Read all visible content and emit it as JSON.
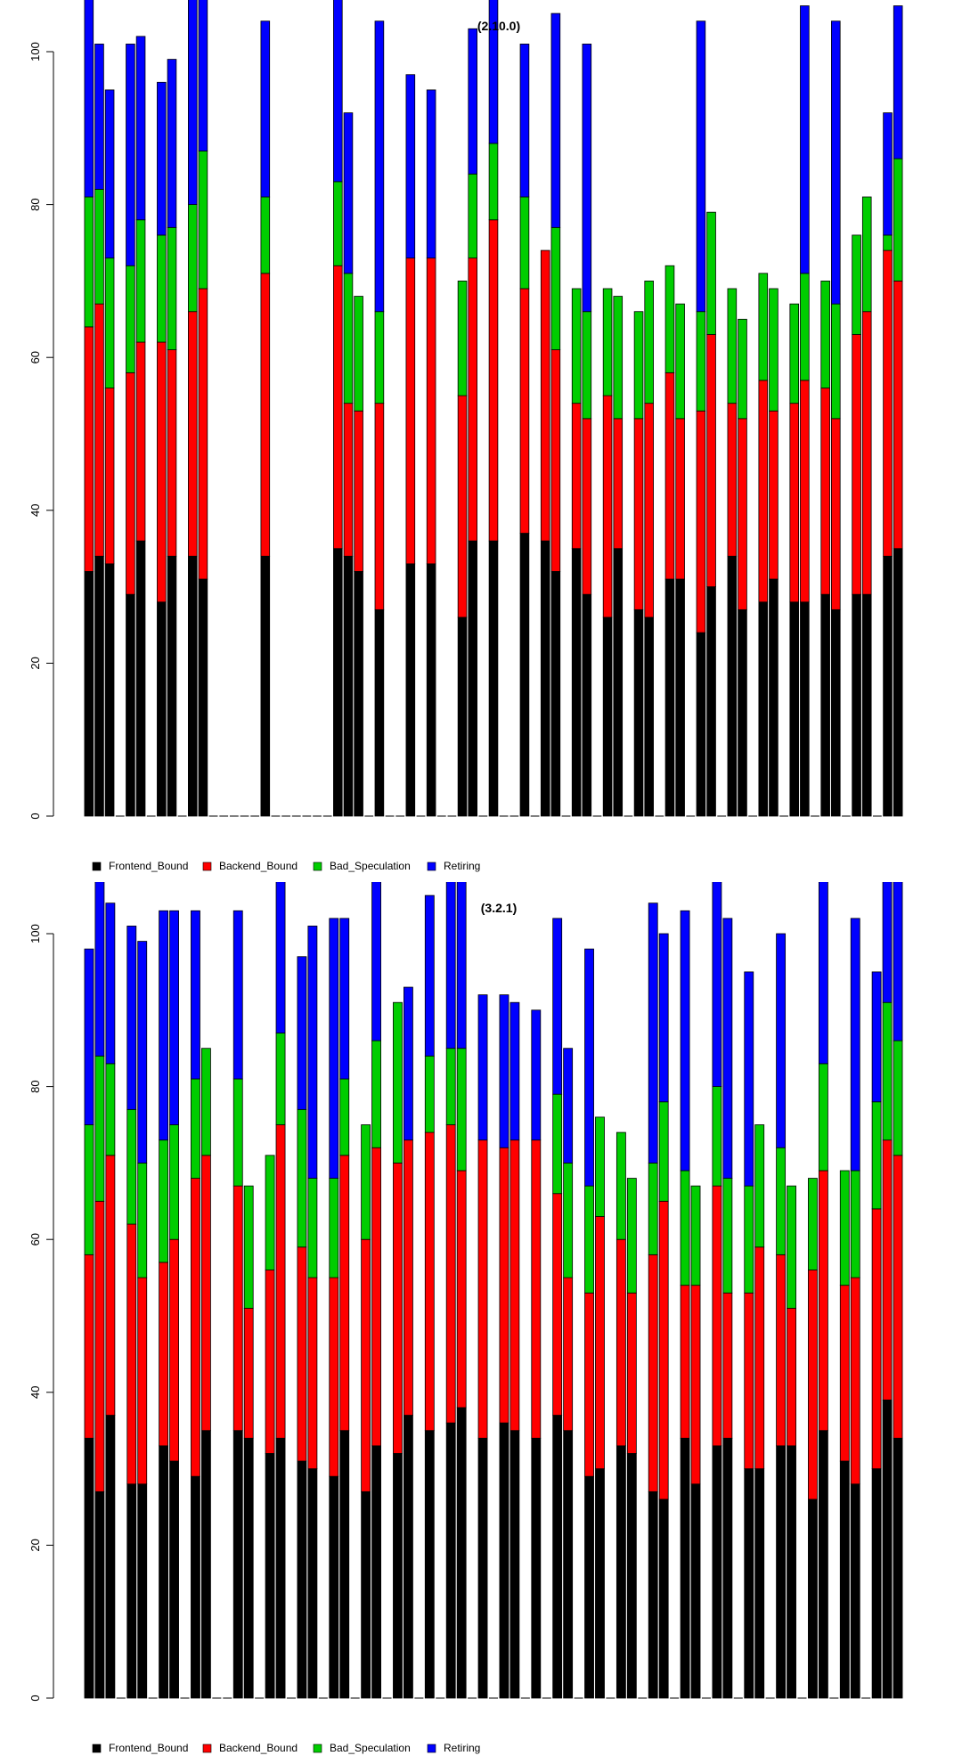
{
  "chart_data": [
    {
      "type": "bar",
      "stacked": true,
      "title": "(2.10.0)",
      "ylim": [
        0,
        107
      ],
      "y_ticks": [
        0,
        20,
        40,
        60,
        80,
        100
      ],
      "grid": false,
      "legend_position": "bottom-left",
      "series": [
        {
          "name": "Frontend_Bound",
          "color": "#000000",
          "values": [
            32,
            34,
            33,
            0,
            29,
            36,
            0,
            28,
            34,
            0,
            34,
            31,
            0,
            0,
            0,
            0,
            0,
            34,
            0,
            0,
            0,
            0,
            0,
            0,
            35,
            34,
            32,
            0,
            27,
            0,
            0,
            33,
            0,
            33,
            0,
            0,
            26,
            36,
            0,
            36,
            0,
            0,
            37,
            0,
            36,
            32,
            0,
            35,
            29,
            0,
            26,
            35,
            0,
            27,
            26,
            0,
            31,
            31,
            0,
            24,
            30,
            0,
            34,
            27,
            0,
            28,
            31,
            0,
            28,
            28,
            0,
            29,
            27,
            0,
            29,
            29,
            0,
            34,
            35
          ]
        },
        {
          "name": "Backend_Bound",
          "color": "#ff0000",
          "values": [
            32,
            33,
            23,
            0,
            29,
            26,
            0,
            34,
            27,
            0,
            32,
            38,
            0,
            0,
            0,
            0,
            0,
            37,
            0,
            0,
            0,
            0,
            0,
            0,
            37,
            20,
            21,
            0,
            27,
            0,
            0,
            40,
            0,
            40,
            0,
            0,
            29,
            37,
            0,
            42,
            0,
            0,
            32,
            0,
            38,
            29,
            0,
            19,
            23,
            0,
            29,
            17,
            0,
            25,
            28,
            0,
            27,
            21,
            0,
            29,
            33,
            0,
            20,
            25,
            0,
            29,
            22,
            0,
            26,
            29,
            0,
            27,
            25,
            0,
            34,
            37,
            0,
            40,
            35
          ]
        },
        {
          "name": "Bad_Speculation",
          "color": "#00cd00",
          "values": [
            17,
            15,
            17,
            0,
            14,
            16,
            0,
            14,
            16,
            0,
            14,
            18,
            0,
            0,
            0,
            0,
            0,
            10,
            0,
            0,
            0,
            0,
            0,
            0,
            11,
            17,
            15,
            0,
            12,
            0,
            0,
            0,
            0,
            0,
            0,
            0,
            15,
            11,
            0,
            10,
            0,
            0,
            12,
            0,
            0,
            16,
            0,
            15,
            14,
            0,
            14,
            16,
            0,
            14,
            16,
            0,
            14,
            15,
            0,
            13,
            16,
            0,
            15,
            13,
            0,
            14,
            16,
            0,
            13,
            14,
            0,
            14,
            15,
            0,
            13,
            15,
            0,
            2,
            16
          ]
        },
        {
          "name": "Retiring",
          "color": "#0000ff",
          "values": [
            26,
            19,
            22,
            0,
            29,
            24,
            0,
            20,
            22,
            0,
            27,
            20,
            0,
            0,
            0,
            0,
            0,
            23,
            0,
            0,
            0,
            0,
            0,
            0,
            25,
            21,
            0,
            0,
            38,
            0,
            0,
            24,
            0,
            22,
            0,
            0,
            0,
            19,
            0,
            20,
            0,
            0,
            20,
            0,
            0,
            28,
            0,
            0,
            35,
            0,
            0,
            0,
            0,
            0,
            0,
            0,
            0,
            0,
            0,
            38,
            0,
            0,
            0,
            0,
            0,
            0,
            0,
            0,
            0,
            35,
            0,
            0,
            37,
            0,
            0,
            0,
            0,
            16,
            20
          ]
        }
      ],
      "legend": [
        "Frontend_Bound",
        "Backend_Bound",
        "Bad_Speculation",
        "Retiring"
      ]
    },
    {
      "type": "bar",
      "stacked": true,
      "title": "(3.2.1)",
      "ylim": [
        0,
        107
      ],
      "y_ticks": [
        0,
        20,
        40,
        60,
        80,
        100
      ],
      "grid": false,
      "legend_position": "bottom-left",
      "series": [
        {
          "name": "Frontend_Bound",
          "color": "#000000",
          "values": [
            34,
            27,
            37,
            0,
            28,
            28,
            0,
            33,
            31,
            0,
            29,
            35,
            0,
            0,
            35,
            34,
            0,
            32,
            34,
            0,
            31,
            30,
            0,
            29,
            35,
            0,
            27,
            33,
            0,
            32,
            37,
            0,
            35,
            0,
            36,
            38,
            0,
            34,
            0,
            36,
            35,
            0,
            34,
            0,
            37,
            35,
            0,
            29,
            30,
            0,
            33,
            32,
            0,
            27,
            26,
            0,
            34,
            28,
            0,
            33,
            34,
            0,
            30,
            30,
            0,
            33,
            33,
            0,
            26,
            35,
            0,
            31,
            28,
            0,
            30,
            39,
            34
          ]
        },
        {
          "name": "Backend_Bound",
          "color": "#ff0000",
          "values": [
            24,
            38,
            34,
            0,
            34,
            27,
            0,
            24,
            29,
            0,
            39,
            36,
            0,
            0,
            32,
            17,
            0,
            24,
            41,
            0,
            28,
            25,
            0,
            26,
            36,
            0,
            33,
            39,
            0,
            38,
            36,
            0,
            39,
            0,
            39,
            31,
            0,
            39,
            0,
            36,
            38,
            0,
            39,
            0,
            29,
            20,
            0,
            24,
            33,
            0,
            27,
            21,
            0,
            31,
            39,
            0,
            20,
            26,
            0,
            34,
            19,
            0,
            23,
            29,
            0,
            25,
            18,
            0,
            30,
            34,
            0,
            23,
            27,
            0,
            34,
            34,
            37
          ]
        },
        {
          "name": "Bad_Speculation",
          "color": "#00cd00",
          "values": [
            17,
            19,
            12,
            0,
            15,
            15,
            0,
            16,
            15,
            0,
            13,
            14,
            0,
            0,
            14,
            16,
            0,
            15,
            12,
            0,
            18,
            13,
            0,
            13,
            10,
            0,
            15,
            14,
            0,
            21,
            0,
            0,
            10,
            0,
            10,
            16,
            0,
            0,
            0,
            0,
            0,
            0,
            0,
            0,
            13,
            15,
            0,
            14,
            13,
            0,
            14,
            15,
            0,
            12,
            13,
            0,
            15,
            13,
            0,
            13,
            15,
            0,
            14,
            16,
            0,
            14,
            16,
            0,
            12,
            14,
            0,
            15,
            14,
            0,
            14,
            18,
            15
          ]
        },
        {
          "name": "Retiring",
          "color": "#0000ff",
          "values": [
            23,
            24,
            21,
            0,
            24,
            29,
            0,
            30,
            28,
            0,
            22,
            0,
            0,
            0,
            22,
            0,
            0,
            0,
            21,
            0,
            20,
            33,
            0,
            34,
            21,
            0,
            0,
            22,
            0,
            0,
            20,
            0,
            21,
            0,
            32,
            23,
            0,
            19,
            0,
            20,
            18,
            0,
            17,
            0,
            23,
            15,
            0,
            31,
            0,
            0,
            0,
            0,
            0,
            34,
            22,
            0,
            34,
            0,
            0,
            34,
            34,
            0,
            28,
            0,
            0,
            28,
            0,
            0,
            0,
            24,
            0,
            0,
            33,
            0,
            17,
            21,
            21
          ]
        }
      ],
      "legend": [
        "Frontend_Bound",
        "Backend_Bound",
        "Bad_Speculation",
        "Retiring"
      ]
    }
  ]
}
